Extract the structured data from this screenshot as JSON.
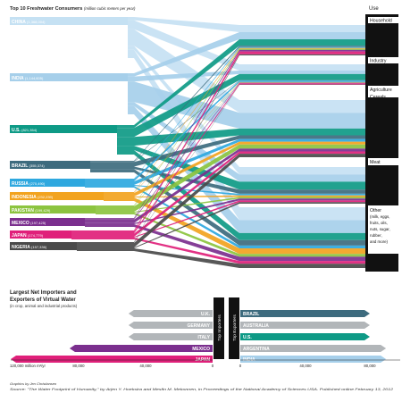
{
  "header": {
    "title": "Top 10 Freshwater Consumers",
    "unit": "(million cubic meters per year)"
  },
  "use_legend": {
    "heading": "Use",
    "items": [
      "Household",
      "Industry",
      "Agriculture",
      "Cereals",
      "Meat",
      "Other"
    ],
    "other_detail": [
      "(milk, eggs,",
      "fruits, oils,",
      "nuts, sugar,",
      "rubber,",
      "and more)"
    ]
  },
  "consumers": [
    {
      "name": "CHINA",
      "value": "1,368,004",
      "color": "#c5e1f3"
    },
    {
      "name": "INDIA",
      "value": "1,144,605",
      "color": "#a6cfea"
    },
    {
      "name": "U.S.",
      "value": "821,354",
      "color": "#0e9a86"
    },
    {
      "name": "BRAZIL",
      "value": "355,374",
      "color": "#3d6b7e"
    },
    {
      "name": "RUSSIA",
      "value": "270,490",
      "color": "#2ea8df"
    },
    {
      "name": "INDONESIA",
      "value": "232,239",
      "color": "#f2a31f"
    },
    {
      "name": "PAKISTAN",
      "value": "199,429",
      "color": "#8cc43f"
    },
    {
      "name": "MEXICO",
      "value": "197,425",
      "color": "#7b2f8e"
    },
    {
      "name": "JAPAN",
      "value": "174,779",
      "color": "#e0207a"
    },
    {
      "name": "NIGERIA",
      "value": "157,336",
      "color": "#4a4a4a"
    }
  ],
  "trade": {
    "heading": [
      "Largest Net Importers and",
      "Exporters of Virtual Water"
    ],
    "subheading": "(in crop, animal and industrial products)",
    "importers_label": "Top Importers",
    "exporters_label": "Top Exporters",
    "importers": [
      {
        "name": "U.K.",
        "value": 50000,
        "color": "#b2b6b9"
      },
      {
        "name": "GERMANY",
        "value": 50000,
        "color": "#b2b6b9"
      },
      {
        "name": "ITALY",
        "value": 50000,
        "color": "#b2b6b9"
      },
      {
        "name": "MEXICO",
        "value": 85000,
        "color": "#7b2f8e"
      },
      {
        "name": "JAPAN",
        "value": 120000,
        "color": "#e0207a"
      }
    ],
    "exporters": [
      {
        "name": "BRAZIL",
        "value": 80000,
        "color": "#3d6b7e"
      },
      {
        "name": "AUSTRALIA",
        "value": 80000,
        "color": "#b2b6b9"
      },
      {
        "name": "U.S.",
        "value": 80000,
        "color": "#0e9a86"
      },
      {
        "name": "ARGENTINA",
        "value": 90000,
        "color": "#b2b6b9"
      },
      {
        "name": "INDIA",
        "value": 90000,
        "color": "#a6cfea"
      }
    ],
    "axis_left_ticks": [
      "120,000 million m³/yr",
      "80,000",
      "40,000",
      "0"
    ],
    "axis_right_ticks": [
      "0",
      "40,000",
      "80,000"
    ]
  },
  "footer": {
    "credit": "Graphics by Jen Christiansen",
    "source": "Source: \"The Water Footprint of Humanity,\" by Arjen Y. Hoekstra and Mesfin M. Mekonnen, in Proceedings of the National Academy of Sciences USA. Published online February 13, 2012"
  }
}
